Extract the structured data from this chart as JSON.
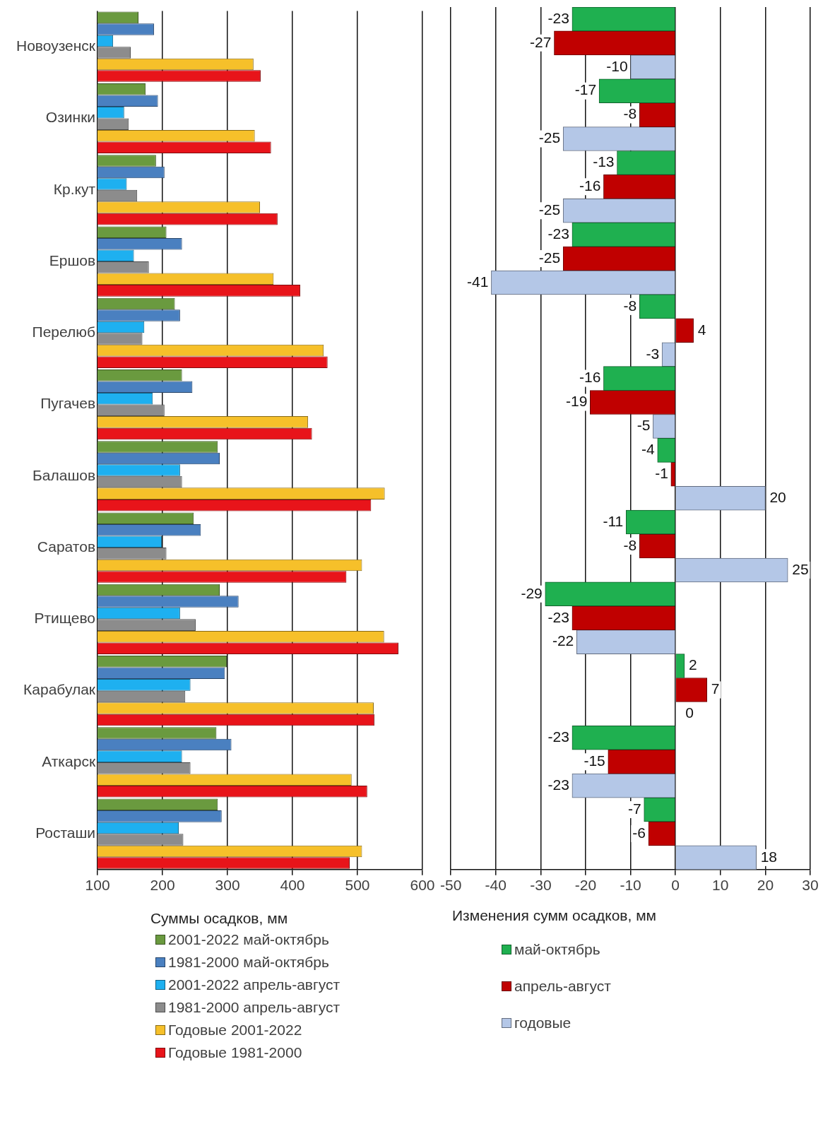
{
  "chart_data": [
    {
      "type": "bar",
      "orientation": "horizontal",
      "xlabel": "Суммы осадков, мм",
      "categories": [
        "Новоузенск",
        "Озинки",
        "Кр.кут",
        "Ершов",
        "Перелюб",
        "Пугачев",
        "Балашов",
        "Саратов",
        "Ртищево",
        "Карабулак",
        "Аткарск",
        "Росташи"
      ],
      "series": [
        {
          "name": "2001-2022 май-октябрь",
          "color": "#6a9a3f",
          "values": [
            163,
            174,
            190,
            206,
            219,
            230,
            285,
            248,
            288,
            299,
            283,
            285
          ]
        },
        {
          "name": "1981-2000 май-октябрь",
          "color": "#4a80c0",
          "values": [
            187,
            193,
            203,
            230,
            227,
            246,
            288,
            259,
            317,
            296,
            306,
            291
          ]
        },
        {
          "name": "2001-2022 апрель-август",
          "color": "#1eb0f0",
          "values": [
            124,
            141,
            145,
            156,
            172,
            185,
            227,
            199,
            227,
            243,
            230,
            225
          ]
        },
        {
          "name": "1981-2000 апрель-август",
          "color": "#8c8c8c",
          "values": [
            151,
            148,
            161,
            179,
            169,
            203,
            230,
            206,
            251,
            235,
            243,
            232
          ]
        },
        {
          "name": "Годовые  2001-2022",
          "color": "#f6c02a",
          "values": [
            340,
            342,
            350,
            371,
            448,
            424,
            542,
            507,
            541,
            525,
            491,
            507
          ]
        },
        {
          "name": "Годовые  1981-2000",
          "color": "#e8141a",
          "values": [
            351,
            367,
            377,
            412,
            454,
            430,
            521,
            483,
            563,
            526,
            515,
            488
          ]
        }
      ],
      "xlim": [
        100,
        600
      ],
      "xticks": [
        100,
        200,
        300,
        400,
        500,
        600
      ],
      "grid": "x",
      "legend": "bottom"
    },
    {
      "type": "bar",
      "orientation": "horizontal",
      "xlabel": "Изменения сумм осадков, мм",
      "categories": [
        null,
        null,
        null,
        null,
        null,
        null,
        null,
        null,
        null,
        null,
        null,
        null
      ],
      "series": [
        {
          "name": "май-октябрь",
          "color": "#1fb050",
          "values": [
            -23,
            -17,
            -13,
            -23,
            -8,
            -16,
            -4,
            -11,
            -29,
            2,
            -23,
            -7
          ]
        },
        {
          "name": "апрель-август",
          "color": "#c00000",
          "values": [
            -27,
            -8,
            -16,
            -25,
            4,
            -19,
            -1,
            -8,
            -23,
            7,
            -15,
            -6
          ]
        },
        {
          "name": "годовые",
          "color": "#b4c7e7",
          "values": [
            -10,
            -25,
            -25,
            -41,
            -3,
            -5,
            20,
            25,
            -22,
            0,
            -23,
            18
          ]
        }
      ],
      "xlim": [
        -50,
        30
      ],
      "xticks": [
        -50,
        -40,
        -30,
        -20,
        -10,
        0,
        10,
        20,
        30
      ],
      "grid": "x",
      "legend": "bottom",
      "data_labels": true,
      "tick_labels": "x"
    }
  ]
}
